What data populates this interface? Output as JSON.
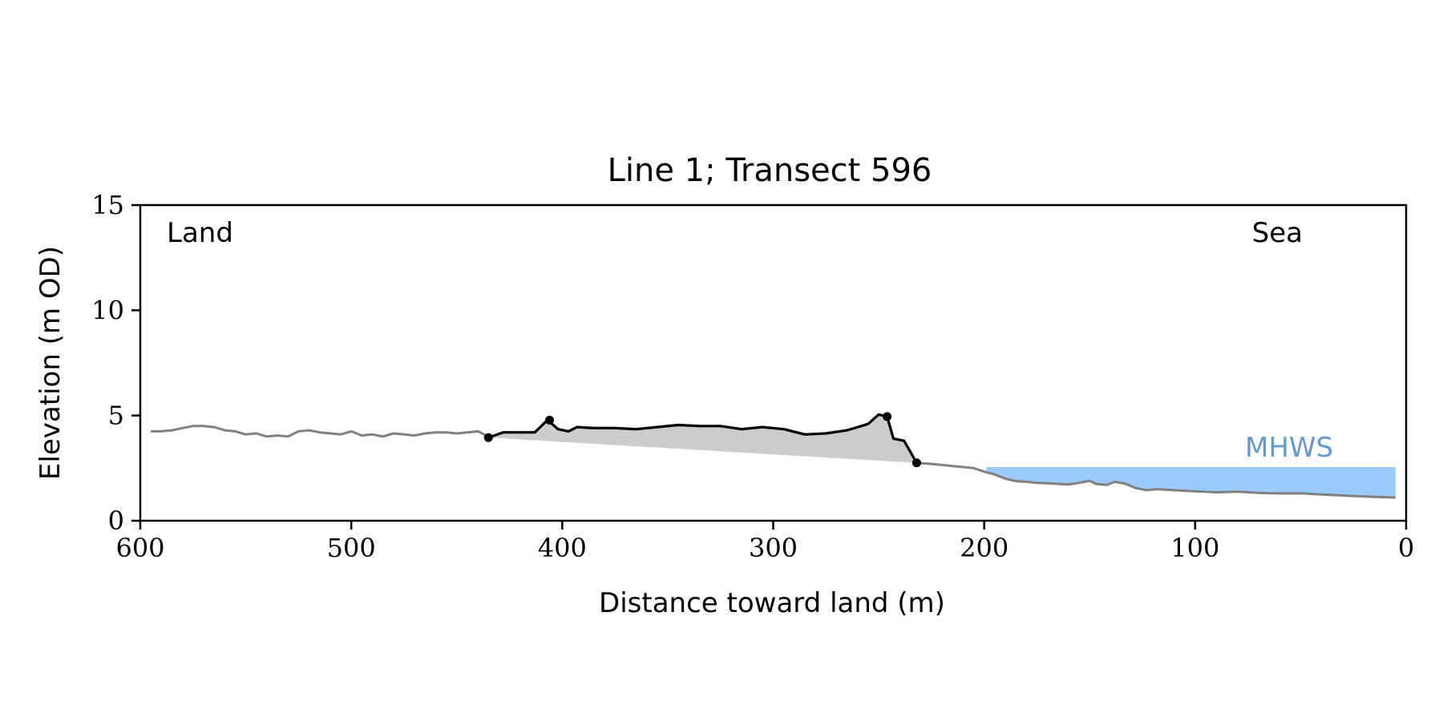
{
  "chart_data": {
    "type": "line",
    "title": "Line 1; Transect 596",
    "xlabel": "Distance toward land (m)",
    "ylabel": "Elevation (m OD)",
    "xlim": [
      600,
      0
    ],
    "ylim": [
      0,
      15
    ],
    "x_ticks": [
      600,
      500,
      400,
      300,
      200,
      100,
      0
    ],
    "y_ticks": [
      0,
      5,
      10,
      15
    ],
    "grid": false,
    "annotations": {
      "land": "Land",
      "sea": "Sea",
      "mhws": "MHWS"
    },
    "mhws": {
      "level": 2.55,
      "x_range": [
        199,
        5
      ]
    },
    "colors": {
      "profile": "#808080",
      "dune": "#000000",
      "dune_fill": "#cccccc",
      "sea_fill": "#9bcbfb",
      "mhws_label": "#6699cc",
      "axis": "#000000"
    },
    "series": [
      {
        "role": "profile",
        "points": [
          [
            595,
            4.25
          ],
          [
            590,
            4.25
          ],
          [
            585,
            4.3
          ],
          [
            580,
            4.4
          ],
          [
            575,
            4.5
          ],
          [
            570,
            4.5
          ],
          [
            565,
            4.45
          ],
          [
            560,
            4.3
          ],
          [
            555,
            4.25
          ],
          [
            550,
            4.1
          ],
          [
            545,
            4.15
          ],
          [
            540,
            4.0
          ],
          [
            535,
            4.05
          ],
          [
            530,
            4.0
          ],
          [
            525,
            4.25
          ],
          [
            520,
            4.3
          ],
          [
            515,
            4.2
          ],
          [
            510,
            4.15
          ],
          [
            505,
            4.1
          ],
          [
            500,
            4.25
          ],
          [
            495,
            4.05
          ],
          [
            490,
            4.1
          ],
          [
            485,
            4.0
          ],
          [
            480,
            4.15
          ],
          [
            475,
            4.1
          ],
          [
            470,
            4.05
          ],
          [
            465,
            4.15
          ],
          [
            460,
            4.2
          ],
          [
            455,
            4.2
          ],
          [
            450,
            4.15
          ],
          [
            445,
            4.2
          ],
          [
            440,
            4.25
          ],
          [
            437,
            4.1
          ],
          [
            435,
            3.95
          ],
          [
            428,
            4.2
          ],
          [
            420,
            4.2
          ],
          [
            413,
            4.2
          ],
          [
            407,
            4.78
          ],
          [
            402,
            4.35
          ],
          [
            397,
            4.25
          ],
          [
            393,
            4.45
          ],
          [
            385,
            4.4
          ],
          [
            375,
            4.4
          ],
          [
            365,
            4.35
          ],
          [
            355,
            4.45
          ],
          [
            345,
            4.55
          ],
          [
            335,
            4.5
          ],
          [
            325,
            4.5
          ],
          [
            315,
            4.35
          ],
          [
            305,
            4.45
          ],
          [
            295,
            4.35
          ],
          [
            285,
            4.1
          ],
          [
            275,
            4.15
          ],
          [
            265,
            4.3
          ],
          [
            255,
            4.6
          ],
          [
            250,
            5.05
          ],
          [
            246,
            4.95
          ],
          [
            243,
            3.9
          ],
          [
            238,
            3.8
          ],
          [
            232,
            2.75
          ],
          [
            225,
            2.7
          ],
          [
            220,
            2.65
          ],
          [
            215,
            2.6
          ],
          [
            210,
            2.55
          ],
          [
            205,
            2.5
          ],
          [
            199,
            2.3
          ],
          [
            195,
            2.2
          ],
          [
            190,
            2.0
          ],
          [
            185,
            1.88
          ],
          [
            180,
            1.85
          ],
          [
            175,
            1.8
          ],
          [
            170,
            1.78
          ],
          [
            165,
            1.75
          ],
          [
            160,
            1.72
          ],
          [
            155,
            1.8
          ],
          [
            150,
            1.9
          ],
          [
            147,
            1.75
          ],
          [
            142,
            1.7
          ],
          [
            138,
            1.85
          ],
          [
            133,
            1.75
          ],
          [
            128,
            1.55
          ],
          [
            123,
            1.45
          ],
          [
            118,
            1.5
          ],
          [
            110,
            1.45
          ],
          [
            100,
            1.4
          ],
          [
            90,
            1.35
          ],
          [
            80,
            1.38
          ],
          [
            70,
            1.32
          ],
          [
            60,
            1.3
          ],
          [
            50,
            1.3
          ],
          [
            40,
            1.25
          ],
          [
            30,
            1.2
          ],
          [
            20,
            1.15
          ],
          [
            10,
            1.12
          ],
          [
            5,
            1.1
          ]
        ]
      },
      {
        "role": "dune-crest",
        "points": [
          [
            435,
            3.95
          ],
          [
            428,
            4.2
          ],
          [
            420,
            4.2
          ],
          [
            413,
            4.2
          ],
          [
            407,
            4.78
          ],
          [
            402,
            4.35
          ],
          [
            397,
            4.25
          ],
          [
            393,
            4.45
          ],
          [
            385,
            4.4
          ],
          [
            375,
            4.4
          ],
          [
            365,
            4.35
          ],
          [
            355,
            4.45
          ],
          [
            345,
            4.55
          ],
          [
            335,
            4.5
          ],
          [
            325,
            4.5
          ],
          [
            315,
            4.35
          ],
          [
            305,
            4.45
          ],
          [
            295,
            4.35
          ],
          [
            285,
            4.1
          ],
          [
            275,
            4.15
          ],
          [
            265,
            4.3
          ],
          [
            255,
            4.6
          ],
          [
            250,
            5.05
          ],
          [
            246,
            4.95
          ],
          [
            243,
            3.9
          ],
          [
            238,
            3.8
          ],
          [
            232,
            2.75
          ]
        ]
      }
    ],
    "markers": [
      [
        435,
        3.95
      ],
      [
        406,
        4.78
      ],
      [
        246,
        4.95
      ],
      [
        232,
        2.75
      ]
    ]
  }
}
